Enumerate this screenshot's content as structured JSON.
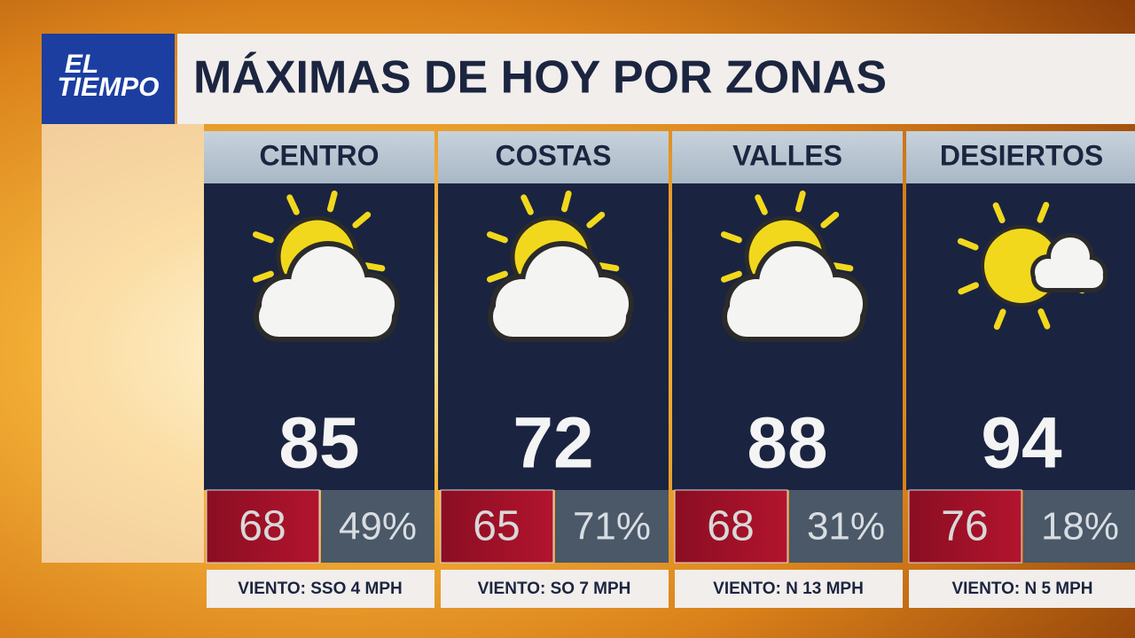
{
  "logo": {
    "line1": "EL",
    "line2": "TIEMPO"
  },
  "title": "MÁXIMAS DE HOY POR ZONAS",
  "zones": [
    {
      "name": "CENTRO",
      "high": "85",
      "low": "68",
      "humidity": "49%",
      "wind": "VIENTO: SSO 4 MPH"
    },
    {
      "name": "COSTAS",
      "high": "72",
      "low": "65",
      "humidity": "71%",
      "wind": "VIENTO: SO 7 MPH"
    },
    {
      "name": "VALLES",
      "high": "88",
      "low": "68",
      "humidity": "31%",
      "wind": "VIENTO: N 13 MPH"
    },
    {
      "name": "DESIERTOS",
      "high": "94",
      "low": "76",
      "humidity": "18%",
      "wind": "VIENTO: N 5 MPH"
    }
  ]
}
